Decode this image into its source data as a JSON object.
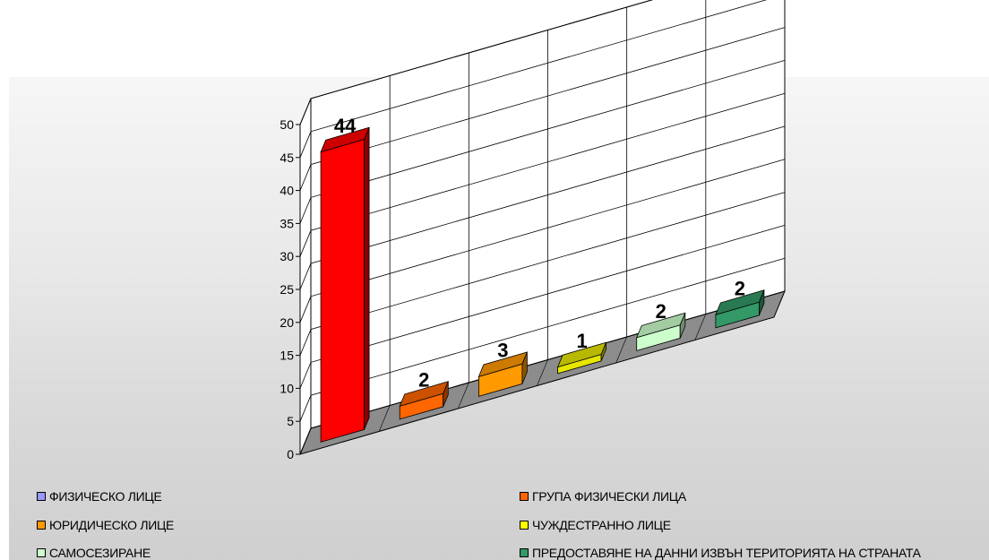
{
  "chart_data": {
    "type": "bar",
    "title": "",
    "xlabel": "",
    "ylabel": "",
    "ylim": [
      0,
      50
    ],
    "yticks": [
      "0",
      "5",
      "10",
      "15",
      "20",
      "25",
      "30",
      "35",
      "40",
      "45",
      "50"
    ],
    "grid": true,
    "legend_position": "bottom",
    "categories": [
      "ФИЗИЧЕСКО ЛИЦЕ",
      "ГРУПА ФИЗИЧЕСКИ ЛИЦА",
      "ЮРИДИЧЕСКО ЛИЦЕ",
      "ЧУЖДЕСТРАННО ЛИЦЕ",
      "САМОСЕЗИРАНЕ",
      "ПРЕДОСТАВЯНЕ НА ДАННИ ИЗВЪН ТЕРИТОРИЯТА НА СТРАНАТА"
    ],
    "values": [
      44,
      2,
      3,
      1,
      2,
      2
    ],
    "data_labels": [
      "44",
      "2",
      "3",
      "1",
      "2",
      "2"
    ],
    "legend_swatch_colors": [
      "#9999ff",
      "#ff6600",
      "#ff9900",
      "#ffff00",
      "#ccffcc",
      "#339966"
    ],
    "bar_colors": [
      "#ff0000",
      "#ff6600",
      "#ff9900",
      "#e6e600",
      "#ccffcc",
      "#339966"
    ]
  }
}
